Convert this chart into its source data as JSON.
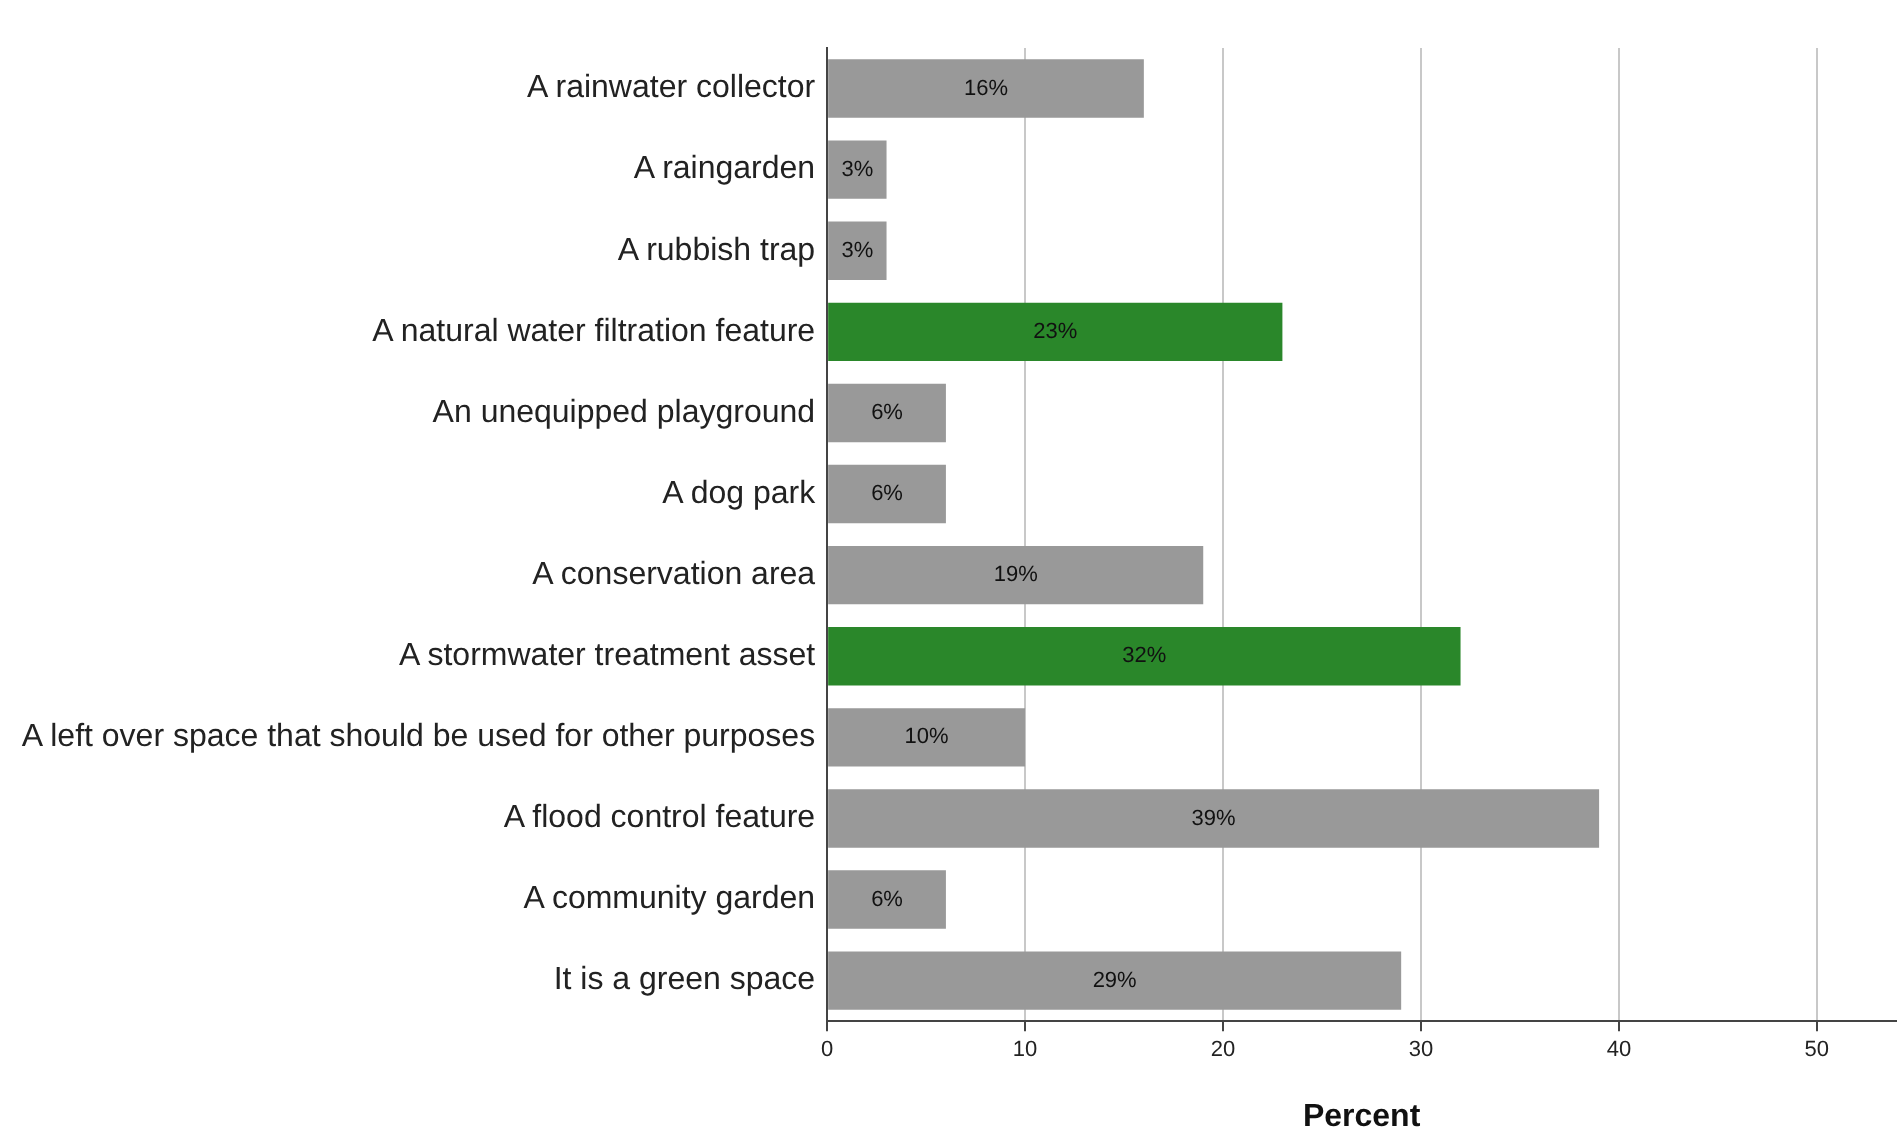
{
  "chart_data": {
    "type": "bar",
    "orientation": "horizontal",
    "xlabel": "Percent",
    "categories": [
      "A rainwater collector",
      "A raingarden",
      "A rubbish trap",
      "A natural water filtration feature",
      "An unequipped playground",
      "A dog park",
      "A conservation area",
      "A stormwater treatment asset",
      "A left over space that should be used for other purposes",
      "A flood control feature",
      "A community garden",
      "It is a green space"
    ],
    "values": [
      16,
      3,
      3,
      23,
      6,
      6,
      19,
      32,
      10,
      39,
      6,
      29
    ],
    "value_labels": [
      "16%",
      "3%",
      "3%",
      "23%",
      "6%",
      "6%",
      "19%",
      "32%",
      "10%",
      "39%",
      "6%",
      "29%"
    ],
    "colors": [
      "#999999",
      "#999999",
      "#999999",
      "#2a872a",
      "#999999",
      "#999999",
      "#999999",
      "#2a872a",
      "#999999",
      "#999999",
      "#999999",
      "#999999"
    ],
    "xlim": [
      0,
      54
    ],
    "xticks": [
      0,
      10,
      20,
      30,
      40,
      50
    ],
    "grid": "x",
    "legend": false
  }
}
